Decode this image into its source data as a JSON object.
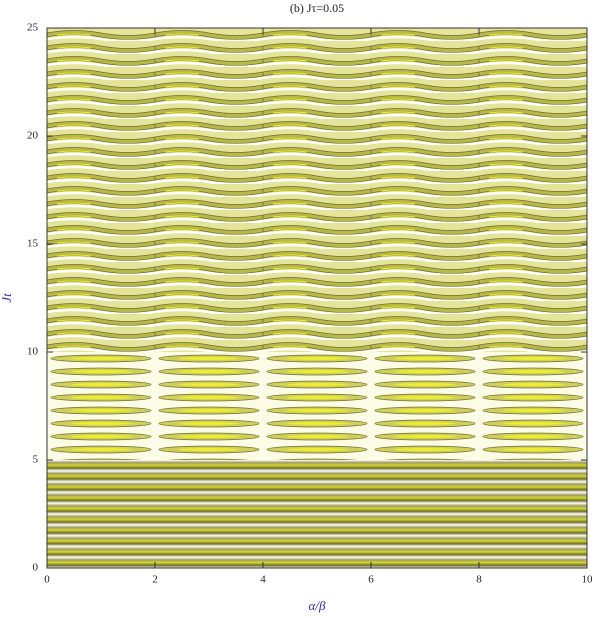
{
  "chart_data": {
    "type": "contour",
    "title": "(b) Jτ=0.05",
    "x_label": "α/β",
    "y_label": "Jt",
    "xlim": [
      0,
      10
    ],
    "ylim": [
      0,
      25
    ],
    "xticks": [
      0,
      2,
      4,
      6,
      8,
      10
    ],
    "yticks": [
      0,
      5,
      10,
      15,
      20,
      25
    ]
  }
}
